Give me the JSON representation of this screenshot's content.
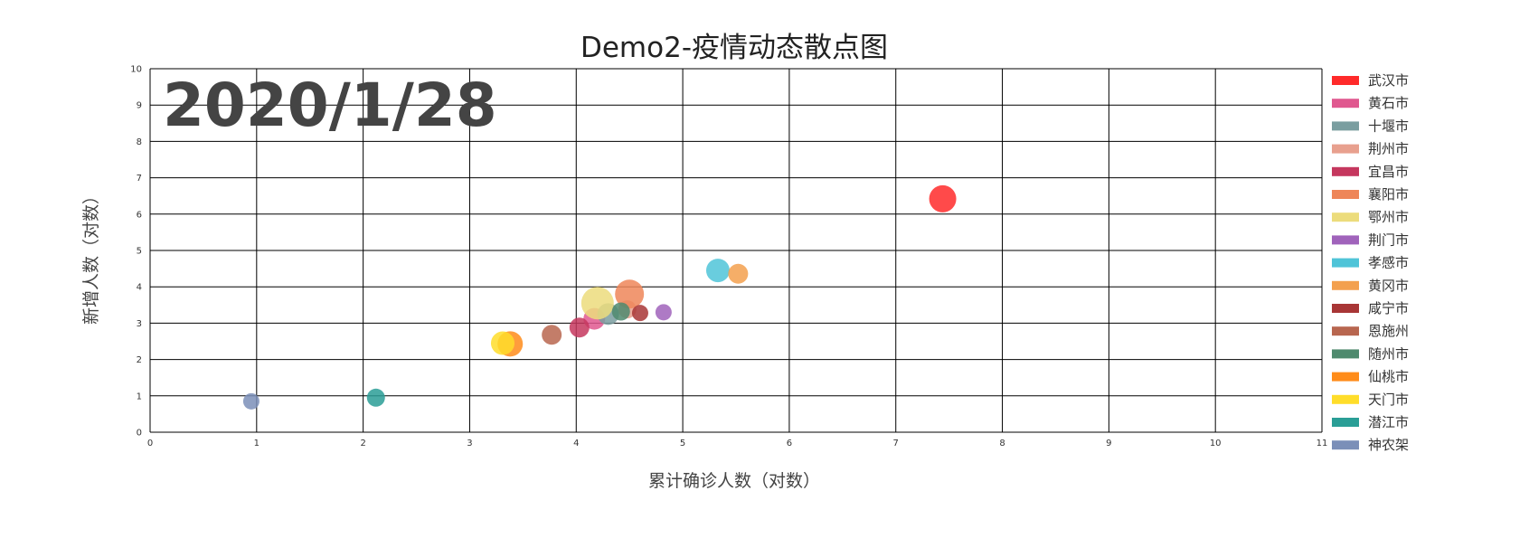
{
  "chart_data": {
    "type": "scatter",
    "title": "Demo2-疫情动态散点图",
    "xlabel": "累计确诊人数（对数）",
    "ylabel": "新增人数（对数）",
    "date": "2020/1/28",
    "xlim": [
      0,
      11
    ],
    "ylim": [
      0,
      10
    ],
    "x_ticks": [
      0,
      1,
      2,
      3,
      4,
      5,
      6,
      7,
      8,
      9,
      10,
      11
    ],
    "y_ticks": [
      0,
      1,
      2,
      3,
      4,
      5,
      6,
      7,
      8,
      9,
      10
    ],
    "grid": true,
    "legend_position": "right",
    "series": [
      {
        "name": "武汉市",
        "color": "#ff2a2a",
        "x": 7.44,
        "y": 6.42,
        "size": 15
      },
      {
        "name": "黄石市",
        "color": "#e0588f",
        "x": 4.17,
        "y": 3.12,
        "size": 12
      },
      {
        "name": "十堰市",
        "color": "#7a9ea0",
        "x": 4.3,
        "y": 3.25,
        "size": 12
      },
      {
        "name": "荆州市",
        "color": "#e8a08e",
        "x": 4.48,
        "y": 3.38,
        "size": 10
      },
      {
        "name": "宜昌市",
        "color": "#c5375e",
        "x": 4.03,
        "y": 2.88,
        "size": 11
      },
      {
        "name": "襄阳市",
        "color": "#ee8659",
        "x": 4.5,
        "y": 3.8,
        "size": 16
      },
      {
        "name": "鄂州市",
        "color": "#ecdc7c",
        "x": 4.2,
        "y": 3.55,
        "size": 18
      },
      {
        "name": "荆门市",
        "color": "#a063bb",
        "x": 4.82,
        "y": 3.3,
        "size": 9
      },
      {
        "name": "孝感市",
        "color": "#4fc4d8",
        "x": 5.33,
        "y": 4.45,
        "size": 13
      },
      {
        "name": "黄冈市",
        "color": "#f3a04e",
        "x": 5.52,
        "y": 4.36,
        "size": 11
      },
      {
        "name": "咸宁市",
        "color": "#a83636",
        "x": 4.6,
        "y": 3.28,
        "size": 9
      },
      {
        "name": "恩施州",
        "color": "#b8664f",
        "x": 3.77,
        "y": 2.68,
        "size": 11
      },
      {
        "name": "随州市",
        "color": "#4f8a6e",
        "x": 4.42,
        "y": 3.32,
        "size": 10
      },
      {
        "name": "仙桃市",
        "color": "#ff8c1a",
        "x": 3.38,
        "y": 2.43,
        "size": 14
      },
      {
        "name": "天门市",
        "color": "#ffdd2a",
        "x": 3.31,
        "y": 2.45,
        "size": 13
      },
      {
        "name": "潜江市",
        "color": "#2a9e96",
        "x": 2.12,
        "y": 0.95,
        "size": 10
      },
      {
        "name": "神农架",
        "color": "#7b8fb8",
        "x": 0.95,
        "y": 0.85,
        "size": 9
      }
    ]
  }
}
